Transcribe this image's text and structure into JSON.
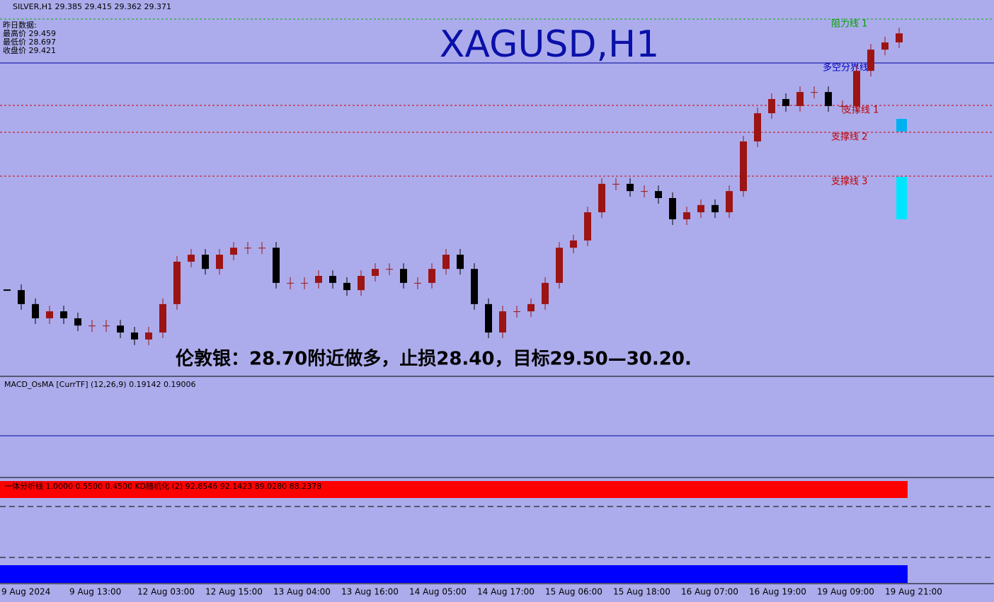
{
  "chart_data": {
    "type": "candlestick",
    "title": "XAGUSD,H1",
    "symbol_header": "SILVER,H1  29.385 29.415 29.362 29.371",
    "info_lines": [
      "昨日数据:",
      "最高价 29.459",
      "最低价 28.697",
      "收盘价 29.421"
    ],
    "annotation": "伦敦银：28.70附近做多，止损28.40，目标29.50—30.20.",
    "level_labels": [
      "阻力线 1",
      "多空分界线",
      "支撑线 1",
      "支撑线 2",
      "支撑线 3"
    ],
    "macd_header": "MACD_OsMA [CurrTF] (12,26,9) 0.19142 0.19006",
    "kd_header": "一体分析线 1.0000 0.5500 0.4500  KD随机化 (2) 92.8546 92.1423 89.0280 88.2378",
    "x_labels": [
      "9 Aug 2024",
      "9 Aug 13:00",
      "12 Aug 03:00",
      "12 Aug 15:00",
      "13 Aug 04:00",
      "13 Aug 16:00",
      "14 Aug 05:00",
      "14 Aug 17:00",
      "15 Aug 06:00",
      "15 Aug 18:00",
      "16 Aug 07:00",
      "16 Aug 19:00",
      "19 Aug 09:00",
      "19 Aug 21:00"
    ],
    "values": [
      28.378,
      28.324,
      28.269,
      28.296,
      28.269,
      28.241,
      28.241,
      28.241,
      28.214,
      28.187,
      28.214,
      28.324,
      28.488,
      28.515,
      28.46,
      28.515,
      28.542,
      28.542,
      28.542,
      28.406,
      28.406,
      28.406,
      28.433,
      28.406,
      28.378,
      28.433,
      28.46,
      28.46,
      28.406,
      28.406,
      28.46,
      28.515,
      28.46,
      28.324,
      28.214,
      28.296,
      28.296,
      28.324,
      28.406,
      28.542,
      28.57,
      28.679,
      28.789,
      28.789,
      28.761,
      28.761,
      28.734,
      28.652,
      28.679,
      28.707,
      28.679,
      28.761,
      28.953,
      29.062,
      29.117,
      29.09,
      29.144,
      29.144,
      29.09,
      29.09,
      29.226,
      29.308,
      29.336,
      29.371
    ],
    "ylim": [
      28.05,
      29.5
    ],
    "up_color": "#9c1414",
    "down_color": "#000000"
  }
}
